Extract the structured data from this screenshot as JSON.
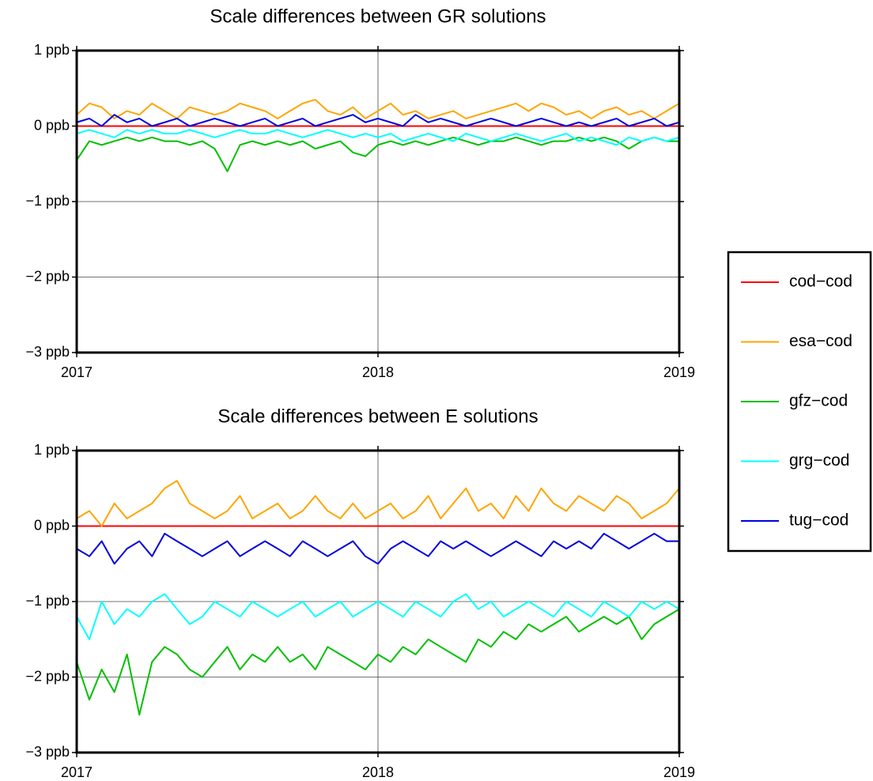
{
  "chart_data": [
    {
      "type": "line",
      "title": "Scale differences between GR solutions",
      "x": [
        2017,
        2017.042,
        2017.083,
        2017.125,
        2017.167,
        2017.208,
        2017.25,
        2017.292,
        2017.333,
        2017.375,
        2017.417,
        2017.458,
        2017.5,
        2017.542,
        2017.583,
        2017.625,
        2017.667,
        2017.708,
        2017.75,
        2017.792,
        2017.833,
        2017.875,
        2017.917,
        2017.958,
        2018,
        2018.042,
        2018.083,
        2018.125,
        2018.167,
        2018.208,
        2018.25,
        2018.292,
        2018.333,
        2018.375,
        2018.417,
        2018.458,
        2018.5,
        2018.542,
        2018.583,
        2018.625,
        2018.667,
        2018.708,
        2018.75,
        2018.792,
        2018.833,
        2018.875,
        2018.917,
        2018.958,
        2019
      ],
      "xlim": [
        2017,
        2019
      ],
      "xticks": [
        2017,
        2018,
        2019
      ],
      "ylim": [
        -3,
        1
      ],
      "yticks": [
        {
          "value": -3,
          "label": "−3 ppb"
        },
        {
          "value": -2,
          "label": "−2 ppb"
        },
        {
          "value": -1,
          "label": "−1 ppb"
        },
        {
          "value": 0,
          "label": "0 ppb"
        },
        {
          "value": 1,
          "label": "1 ppb"
        }
      ],
      "grid": true,
      "series": [
        {
          "name": "cod−cod",
          "color": "#ff0000",
          "values": [
            0,
            0,
            0,
            0,
            0,
            0,
            0,
            0,
            0,
            0,
            0,
            0,
            0,
            0,
            0,
            0,
            0,
            0,
            0,
            0,
            0,
            0,
            0,
            0,
            0,
            0,
            0,
            0,
            0,
            0,
            0,
            0,
            0,
            0,
            0,
            0,
            0,
            0,
            0,
            0,
            0,
            0,
            0,
            0,
            0,
            0,
            0,
            0,
            0
          ]
        },
        {
          "name": "esa−cod",
          "color": "#ffa500",
          "values": [
            0.15,
            0.3,
            0.25,
            0.1,
            0.2,
            0.15,
            0.3,
            0.2,
            0.1,
            0.25,
            0.2,
            0.15,
            0.2,
            0.3,
            0.25,
            0.2,
            0.1,
            0.2,
            0.3,
            0.35,
            0.2,
            0.15,
            0.25,
            0.1,
            0.2,
            0.3,
            0.15,
            0.2,
            0.1,
            0.15,
            0.2,
            0.1,
            0.15,
            0.2,
            0.25,
            0.3,
            0.2,
            0.3,
            0.25,
            0.15,
            0.2,
            0.1,
            0.2,
            0.25,
            0.15,
            0.2,
            0.1,
            0.2,
            0.3
          ]
        },
        {
          "name": "gfz−cod",
          "color": "#00c000",
          "values": [
            -0.45,
            -0.2,
            -0.25,
            -0.2,
            -0.15,
            -0.2,
            -0.15,
            -0.2,
            -0.2,
            -0.25,
            -0.2,
            -0.3,
            -0.6,
            -0.25,
            -0.2,
            -0.25,
            -0.2,
            -0.25,
            -0.2,
            -0.3,
            -0.25,
            -0.2,
            -0.35,
            -0.4,
            -0.25,
            -0.2,
            -0.25,
            -0.2,
            -0.25,
            -0.2,
            -0.15,
            -0.2,
            -0.25,
            -0.2,
            -0.2,
            -0.15,
            -0.2,
            -0.25,
            -0.2,
            -0.2,
            -0.15,
            -0.2,
            -0.15,
            -0.2,
            -0.3,
            -0.2,
            -0.15,
            -0.2,
            -0.2
          ]
        },
        {
          "name": "grg−cod",
          "color": "#00ffff",
          "values": [
            -0.1,
            -0.05,
            -0.1,
            -0.15,
            -0.05,
            -0.1,
            -0.05,
            -0.1,
            -0.1,
            -0.05,
            -0.1,
            -0.15,
            -0.1,
            -0.05,
            -0.1,
            -0.1,
            -0.05,
            -0.1,
            -0.15,
            -0.1,
            -0.05,
            -0.1,
            -0.15,
            -0.1,
            -0.15,
            -0.1,
            -0.2,
            -0.15,
            -0.1,
            -0.15,
            -0.2,
            -0.1,
            -0.15,
            -0.2,
            -0.15,
            -0.1,
            -0.15,
            -0.2,
            -0.15,
            -0.1,
            -0.2,
            -0.15,
            -0.2,
            -0.25,
            -0.15,
            -0.2,
            -0.15,
            -0.2,
            -0.15
          ]
        },
        {
          "name": "tug−cod",
          "color": "#0000e0",
          "values": [
            0.05,
            0.1,
            0,
            0.15,
            0.05,
            0.1,
            0,
            0.05,
            0.1,
            0,
            0.05,
            0.1,
            0.05,
            0,
            0.05,
            0.1,
            0,
            0.05,
            0.1,
            0,
            0.05,
            0.1,
            0.15,
            0.05,
            0.1,
            0.05,
            0,
            0.15,
            0.05,
            0.1,
            0.05,
            0,
            0.05,
            0.1,
            0.05,
            0,
            0.05,
            0.1,
            0.05,
            0,
            0.05,
            0,
            0.05,
            0.1,
            0,
            0.05,
            0.1,
            0,
            0.05
          ]
        }
      ]
    },
    {
      "type": "line",
      "title": "Scale differences between E solutions",
      "x": [
        2017,
        2017.042,
        2017.083,
        2017.125,
        2017.167,
        2017.208,
        2017.25,
        2017.292,
        2017.333,
        2017.375,
        2017.417,
        2017.458,
        2017.5,
        2017.542,
        2017.583,
        2017.625,
        2017.667,
        2017.708,
        2017.75,
        2017.792,
        2017.833,
        2017.875,
        2017.917,
        2017.958,
        2018,
        2018.042,
        2018.083,
        2018.125,
        2018.167,
        2018.208,
        2018.25,
        2018.292,
        2018.333,
        2018.375,
        2018.417,
        2018.458,
        2018.5,
        2018.542,
        2018.583,
        2018.625,
        2018.667,
        2018.708,
        2018.75,
        2018.792,
        2018.833,
        2018.875,
        2018.917,
        2018.958,
        2019
      ],
      "xlim": [
        2017,
        2019
      ],
      "xticks": [
        2017,
        2018,
        2019
      ],
      "ylim": [
        -3,
        1
      ],
      "yticks": [
        {
          "value": -3,
          "label": "−3 ppb"
        },
        {
          "value": -2,
          "label": "−2 ppb"
        },
        {
          "value": -1,
          "label": "−1 ppb"
        },
        {
          "value": 0,
          "label": "0 ppb"
        },
        {
          "value": 1,
          "label": "1 ppb"
        }
      ],
      "grid": true,
      "series": [
        {
          "color": "#ff0000",
          "values": [
            0,
            0,
            0,
            0,
            0,
            0,
            0,
            0,
            0,
            0,
            0,
            0,
            0,
            0,
            0,
            0,
            0,
            0,
            0,
            0,
            0,
            0,
            0,
            0,
            0,
            0,
            0,
            0,
            0,
            0,
            0,
            0,
            0,
            0,
            0,
            0,
            0,
            0,
            0,
            0,
            0,
            0,
            0,
            0,
            0,
            0,
            0,
            0,
            0
          ]
        },
        {
          "color": "#ffa500",
          "values": [
            0.1,
            0.2,
            0,
            0.3,
            0.1,
            0.2,
            0.3,
            0.5,
            0.6,
            0.3,
            0.2,
            0.1,
            0.2,
            0.4,
            0.1,
            0.2,
            0.3,
            0.1,
            0.2,
            0.4,
            0.2,
            0.1,
            0.3,
            0.1,
            0.2,
            0.3,
            0.1,
            0.2,
            0.4,
            0.1,
            0.3,
            0.5,
            0.2,
            0.3,
            0.1,
            0.4,
            0.2,
            0.5,
            0.3,
            0.2,
            0.4,
            0.3,
            0.2,
            0.4,
            0.3,
            0.1,
            0.2,
            0.3,
            0.5
          ]
        },
        {
          "color": "#00c000",
          "values": [
            -1.8,
            -2.3,
            -1.9,
            -2.2,
            -1.7,
            -2.5,
            -1.8,
            -1.6,
            -1.7,
            -1.9,
            -2,
            -1.8,
            -1.6,
            -1.9,
            -1.7,
            -1.8,
            -1.6,
            -1.8,
            -1.7,
            -1.9,
            -1.6,
            -1.7,
            -1.8,
            -1.9,
            -1.7,
            -1.8,
            -1.6,
            -1.7,
            -1.5,
            -1.6,
            -1.7,
            -1.8,
            -1.5,
            -1.6,
            -1.4,
            -1.5,
            -1.3,
            -1.4,
            -1.3,
            -1.2,
            -1.4,
            -1.3,
            -1.2,
            -1.3,
            -1.2,
            -1.5,
            -1.3,
            -1.2,
            -1.1
          ]
        },
        {
          "color": "#00ffff",
          "values": [
            -1.2,
            -1.5,
            -1,
            -1.3,
            -1.1,
            -1.2,
            -1,
            -0.9,
            -1.1,
            -1.3,
            -1.2,
            -1,
            -1.1,
            -1.2,
            -1,
            -1.1,
            -1.2,
            -1.1,
            -1,
            -1.2,
            -1.1,
            -1,
            -1.2,
            -1.1,
            -1,
            -1.1,
            -1.2,
            -1,
            -1.1,
            -1.2,
            -1,
            -0.9,
            -1.1,
            -1,
            -1.2,
            -1.1,
            -1,
            -1.1,
            -1.2,
            -1,
            -1.1,
            -1.2,
            -1,
            -1.1,
            -1.2,
            -1,
            -1.1,
            -1,
            -1.1
          ]
        },
        {
          "color": "#0000e0",
          "values": [
            -0.3,
            -0.4,
            -0.2,
            -0.5,
            -0.3,
            -0.2,
            -0.4,
            -0.1,
            -0.2,
            -0.3,
            -0.4,
            -0.3,
            -0.2,
            -0.4,
            -0.3,
            -0.2,
            -0.3,
            -0.4,
            -0.2,
            -0.3,
            -0.4,
            -0.3,
            -0.2,
            -0.4,
            -0.5,
            -0.3,
            -0.2,
            -0.3,
            -0.4,
            -0.2,
            -0.3,
            -0.2,
            -0.3,
            -0.4,
            -0.3,
            -0.2,
            -0.3,
            -0.4,
            -0.2,
            -0.3,
            -0.2,
            -0.3,
            -0.1,
            -0.2,
            -0.3,
            -0.2,
            -0.1,
            -0.2,
            -0.2
          ]
        }
      ]
    }
  ]
}
